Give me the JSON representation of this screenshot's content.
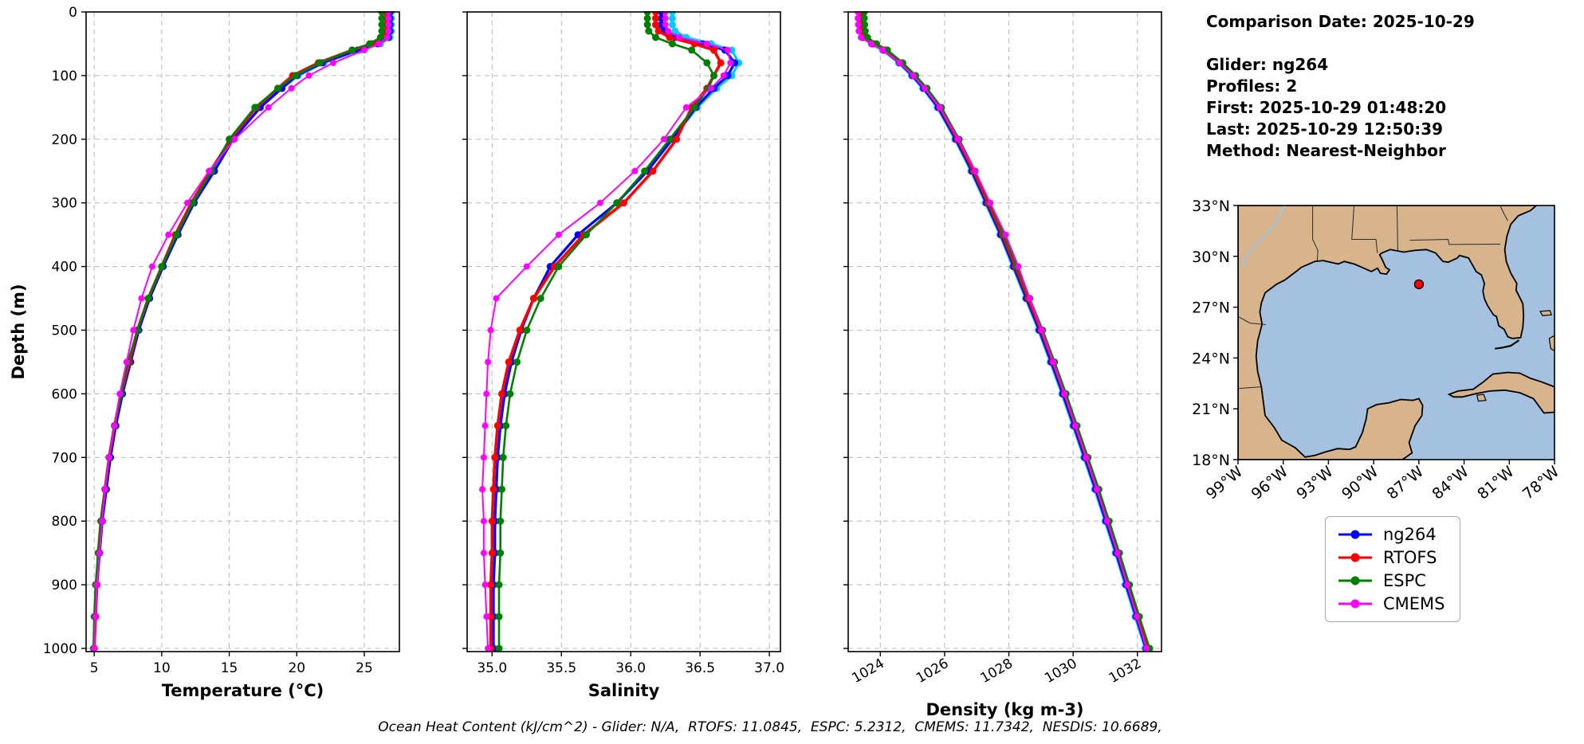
{
  "info": {
    "comparison_date": "Comparison Date: 2025-10-29",
    "glider": "Glider: ng264",
    "profiles": "Profiles: 2",
    "first": "First: 2025-10-29 01:48:20",
    "last": "Last: 2025-10-29 12:50:39",
    "method": "Method: Nearest-Neighbor"
  },
  "caption": "Ocean Heat Content (kJ/cm^2) - Glider: N/A,  RTOFS: 11.0845,  ESPC: 5.2312,  CMEMS: 11.7342,  NESDIS: 10.6689,",
  "legend": {
    "entries": [
      {
        "label": "ng264",
        "color": "#0000ff"
      },
      {
        "label": "RTOFS",
        "color": "#ff0000"
      },
      {
        "label": "ESPC",
        "color": "#008000"
      },
      {
        "label": "CMEMS",
        "color": "#ff00ff"
      }
    ]
  },
  "chart_data": [
    {
      "id": "temperature",
      "type": "line",
      "xlabel": "Temperature (°C)",
      "ylabel": "Depth (m)",
      "xlim": [
        4.4,
        27.6
      ],
      "xticks": [
        5,
        10,
        15,
        20,
        25
      ],
      "xtick_labels": [
        "5",
        "10",
        "15",
        "20",
        "25"
      ],
      "xtick_rotation": 0,
      "ylim": [
        0,
        1005
      ],
      "yticks": [
        0,
        100,
        200,
        300,
        400,
        500,
        600,
        700,
        800,
        900,
        1000
      ],
      "grid": true,
      "depths": [
        0,
        10,
        20,
        30,
        40,
        50,
        60,
        80,
        100,
        120,
        150,
        200,
        250,
        300,
        350,
        400,
        450,
        500,
        550,
        600,
        650,
        700,
        750,
        800,
        850,
        900,
        950,
        1000
      ],
      "series": [
        {
          "name": "ng264-2",
          "color": "#00ccff",
          "lw": 3.2,
          "marker_r": 4.5,
          "in_legend": false,
          "values": [
            27.0,
            27.0,
            27.0,
            27.0,
            26.9,
            26.2,
            24.7,
            22.0,
            20.1,
            18.9,
            17.3,
            15.3,
            13.9,
            12.4,
            11.2,
            10.1,
            9.1,
            8.3,
            7.7,
            7.1,
            6.6,
            6.2,
            5.9,
            5.6,
            5.4,
            5.2,
            5.1,
            5.0
          ]
        },
        {
          "name": "ng264",
          "color": "#0000ff",
          "lw": 3.2,
          "marker_r": 4.5,
          "in_legend": true,
          "values": [
            26.9,
            26.9,
            26.9,
            26.9,
            26.8,
            26.0,
            24.5,
            21.9,
            20.0,
            18.9,
            17.3,
            15.3,
            13.9,
            12.4,
            11.2,
            10.1,
            9.1,
            8.3,
            7.7,
            7.1,
            6.6,
            6.2,
            5.9,
            5.6,
            5.4,
            5.2,
            5.1,
            5.0
          ]
        },
        {
          "name": "RTOFS",
          "color": "#ff0000",
          "lw": 3.6,
          "marker_r": 4.5,
          "in_legend": true,
          "values": [
            26.6,
            26.6,
            26.6,
            26.6,
            26.5,
            25.6,
            24.1,
            21.6,
            19.7,
            18.6,
            17.0,
            15.1,
            13.6,
            12.2,
            11.0,
            10.0,
            9.0,
            8.2,
            7.6,
            7.0,
            6.5,
            6.1,
            5.8,
            5.5,
            5.3,
            5.2,
            5.1,
            5.0
          ]
        },
        {
          "name": "ESPC",
          "color": "#008000",
          "lw": 2.6,
          "marker_r": 4.5,
          "in_legend": true,
          "values": [
            26.3,
            26.3,
            26.3,
            26.3,
            26.2,
            25.4,
            24.1,
            21.7,
            19.9,
            18.6,
            16.9,
            15.0,
            13.7,
            12.3,
            11.1,
            10.0,
            9.0,
            8.2,
            7.5,
            7.0,
            6.5,
            6.1,
            5.8,
            5.5,
            5.3,
            5.1,
            5.0,
            4.95
          ]
        },
        {
          "name": "CMEMS",
          "color": "#ff00ff",
          "lw": 2.0,
          "marker_r": 4.0,
          "in_legend": true,
          "values": [
            26.8,
            26.8,
            26.8,
            26.8,
            26.7,
            26.1,
            25.0,
            22.7,
            20.9,
            19.6,
            17.9,
            15.4,
            13.5,
            11.9,
            10.5,
            9.3,
            8.5,
            7.9,
            7.4,
            6.9,
            6.5,
            6.1,
            5.8,
            5.6,
            5.4,
            5.2,
            5.1,
            5.0
          ]
        }
      ]
    },
    {
      "id": "salinity",
      "type": "line",
      "xlabel": "Salinity",
      "ylabel": "Depth (m)",
      "xlim": [
        34.82,
        37.08
      ],
      "xticks": [
        35.0,
        35.5,
        36.0,
        36.5,
        37.0
      ],
      "xtick_labels": [
        "35.0",
        "35.5",
        "36.0",
        "36.5",
        "37.0"
      ],
      "xtick_rotation": 0,
      "ylim": [
        0,
        1005
      ],
      "yticks": [
        0,
        100,
        200,
        300,
        400,
        500,
        600,
        700,
        800,
        900,
        1000
      ],
      "grid": true,
      "depths": [
        0,
        10,
        20,
        30,
        40,
        50,
        60,
        80,
        100,
        120,
        150,
        200,
        250,
        300,
        350,
        400,
        450,
        500,
        550,
        600,
        650,
        700,
        750,
        800,
        850,
        900,
        950,
        1000
      ],
      "series": [
        {
          "name": "ng264-2",
          "color": "#00ccff",
          "lw": 3.2,
          "marker_r": 4.5,
          "in_legend": false,
          "values": [
            36.3,
            36.3,
            36.3,
            36.32,
            36.4,
            36.58,
            36.73,
            36.78,
            36.73,
            36.62,
            36.48,
            36.3,
            36.12,
            35.9,
            35.62,
            35.42,
            35.3,
            35.21,
            35.14,
            35.09,
            35.06,
            35.04,
            35.03,
            35.02,
            35.02,
            35.01,
            35.01,
            35.01
          ]
        },
        {
          "name": "ng264",
          "color": "#0000ff",
          "lw": 3.2,
          "marker_r": 4.5,
          "in_legend": true,
          "values": [
            36.22,
            36.22,
            36.22,
            36.24,
            36.32,
            36.52,
            36.68,
            36.75,
            36.7,
            36.6,
            36.47,
            36.3,
            36.12,
            35.9,
            35.62,
            35.42,
            35.3,
            35.21,
            35.14,
            35.09,
            35.06,
            35.04,
            35.03,
            35.02,
            35.02,
            35.01,
            35.01,
            35.01
          ]
        },
        {
          "name": "RTOFS",
          "color": "#ff0000",
          "lw": 3.6,
          "marker_r": 4.5,
          "in_legend": true,
          "values": [
            36.18,
            36.18,
            36.18,
            36.2,
            36.28,
            36.46,
            36.6,
            36.65,
            36.6,
            36.55,
            36.44,
            36.33,
            36.16,
            35.95,
            35.66,
            35.45,
            35.3,
            35.2,
            35.12,
            35.07,
            35.04,
            35.02,
            35.01,
            35.0,
            35.0,
            34.99,
            34.99,
            34.99
          ]
        },
        {
          "name": "ESPC",
          "color": "#008000",
          "lw": 2.6,
          "marker_r": 4.5,
          "in_legend": true,
          "values": [
            36.12,
            36.12,
            36.12,
            36.13,
            36.18,
            36.3,
            36.44,
            36.55,
            36.6,
            36.56,
            36.46,
            36.28,
            36.1,
            35.9,
            35.68,
            35.48,
            35.35,
            35.25,
            35.18,
            35.13,
            35.1,
            35.08,
            35.07,
            35.06,
            35.06,
            35.05,
            35.05,
            35.05
          ]
        },
        {
          "name": "CMEMS",
          "color": "#ff00ff",
          "lw": 2.0,
          "marker_r": 4.0,
          "in_legend": true,
          "values": [
            36.25,
            36.25,
            36.25,
            36.27,
            36.35,
            36.55,
            36.7,
            36.72,
            36.67,
            36.58,
            36.4,
            36.24,
            36.03,
            35.78,
            35.48,
            35.25,
            35.03,
            34.99,
            34.97,
            34.96,
            34.95,
            34.94,
            34.93,
            34.94,
            34.94,
            34.95,
            34.96,
            34.97
          ]
        }
      ]
    },
    {
      "id": "density",
      "type": "line",
      "xlabel": "Density (kg m-3)",
      "ylabel": "Depth (m)",
      "xlim": [
        1023.0,
        1032.75
      ],
      "xticks": [
        1024,
        1026,
        1028,
        1030,
        1032
      ],
      "xtick_labels": [
        "1024",
        "1026",
        "1028",
        "1030",
        "1032"
      ],
      "xtick_rotation": 30,
      "ylim": [
        0,
        1005
      ],
      "yticks": [
        0,
        100,
        200,
        300,
        400,
        500,
        600,
        700,
        800,
        900,
        1000
      ],
      "grid": true,
      "depths": [
        0,
        10,
        20,
        30,
        40,
        50,
        60,
        80,
        100,
        120,
        150,
        200,
        250,
        300,
        350,
        400,
        450,
        500,
        550,
        600,
        650,
        700,
        750,
        800,
        850,
        900,
        950,
        1000
      ],
      "series": [
        {
          "name": "ng264-2",
          "color": "#00ccff",
          "lw": 3.2,
          "marker_r": 4.5,
          "in_legend": false,
          "values": [
            1023.32,
            1023.32,
            1023.33,
            1023.35,
            1023.42,
            1023.72,
            1024.07,
            1024.57,
            1024.97,
            1025.32,
            1025.77,
            1026.32,
            1026.82,
            1027.27,
            1027.72,
            1028.12,
            1028.52,
            1028.92,
            1029.29,
            1029.65,
            1029.99,
            1030.33,
            1030.67,
            1030.99,
            1031.31,
            1031.62,
            1031.93,
            1032.24
          ]
        },
        {
          "name": "ng264",
          "color": "#0000ff",
          "lw": 3.2,
          "marker_r": 4.5,
          "in_legend": true,
          "values": [
            1023.35,
            1023.35,
            1023.36,
            1023.38,
            1023.45,
            1023.75,
            1024.1,
            1024.6,
            1025.0,
            1025.35,
            1025.8,
            1026.35,
            1026.85,
            1027.3,
            1027.75,
            1028.15,
            1028.55,
            1028.95,
            1029.32,
            1029.68,
            1030.02,
            1030.36,
            1030.7,
            1031.02,
            1031.34,
            1031.65,
            1031.96,
            1032.27
          ]
        },
        {
          "name": "RTOFS",
          "color": "#ff0000",
          "lw": 3.6,
          "marker_r": 4.5,
          "in_legend": true,
          "values": [
            1023.4,
            1023.4,
            1023.41,
            1023.43,
            1023.5,
            1023.8,
            1024.15,
            1024.65,
            1025.05,
            1025.4,
            1025.85,
            1026.4,
            1026.9,
            1027.35,
            1027.8,
            1028.2,
            1028.6,
            1029.0,
            1029.37,
            1029.73,
            1030.07,
            1030.41,
            1030.75,
            1031.07,
            1031.39,
            1031.7,
            1032.01,
            1032.32
          ]
        },
        {
          "name": "ESPC",
          "color": "#008000",
          "lw": 2.6,
          "marker_r": 4.5,
          "in_legend": true,
          "values": [
            1023.5,
            1023.5,
            1023.51,
            1023.53,
            1023.6,
            1023.88,
            1024.22,
            1024.7,
            1025.1,
            1025.45,
            1025.9,
            1026.45,
            1026.95,
            1027.4,
            1027.85,
            1028.25,
            1028.65,
            1029.05,
            1029.42,
            1029.78,
            1030.12,
            1030.46,
            1030.8,
            1031.12,
            1031.44,
            1031.75,
            1032.06,
            1032.38
          ]
        },
        {
          "name": "CMEMS",
          "color": "#ff00ff",
          "lw": 2.0,
          "marker_r": 4.0,
          "in_legend": true,
          "values": [
            1023.3,
            1023.3,
            1023.31,
            1023.33,
            1023.4,
            1023.72,
            1024.08,
            1024.6,
            1025.02,
            1025.38,
            1025.85,
            1026.42,
            1026.95,
            1027.42,
            1027.9,
            1028.3,
            1028.65,
            1029.02,
            1029.38,
            1029.73,
            1030.07,
            1030.41,
            1030.74,
            1031.06,
            1031.38,
            1031.68,
            1031.98,
            1032.28
          ]
        }
      ]
    }
  ],
  "map": {
    "extent": {
      "lon_min": -99,
      "lon_max": -78,
      "lat_min": 18,
      "lat_max": 33
    },
    "lon_ticks": [
      -99,
      -96,
      -93,
      -90,
      -87,
      -84,
      -81,
      -78
    ],
    "lon_labels": [
      "99°W",
      "96°W",
      "93°W",
      "90°W",
      "87°W",
      "84°W",
      "81°W",
      "78°W"
    ],
    "lat_ticks": [
      33,
      30,
      27,
      24,
      21,
      18
    ],
    "lat_labels": [
      "33°N",
      "30°N",
      "27°N",
      "24°N",
      "21°N",
      "18°N"
    ],
    "water_color": "#a4c2e0",
    "land_color": "#d7b48c",
    "marker": {
      "lon": -87.0,
      "lat": 28.35,
      "color": "#ff0000"
    }
  }
}
